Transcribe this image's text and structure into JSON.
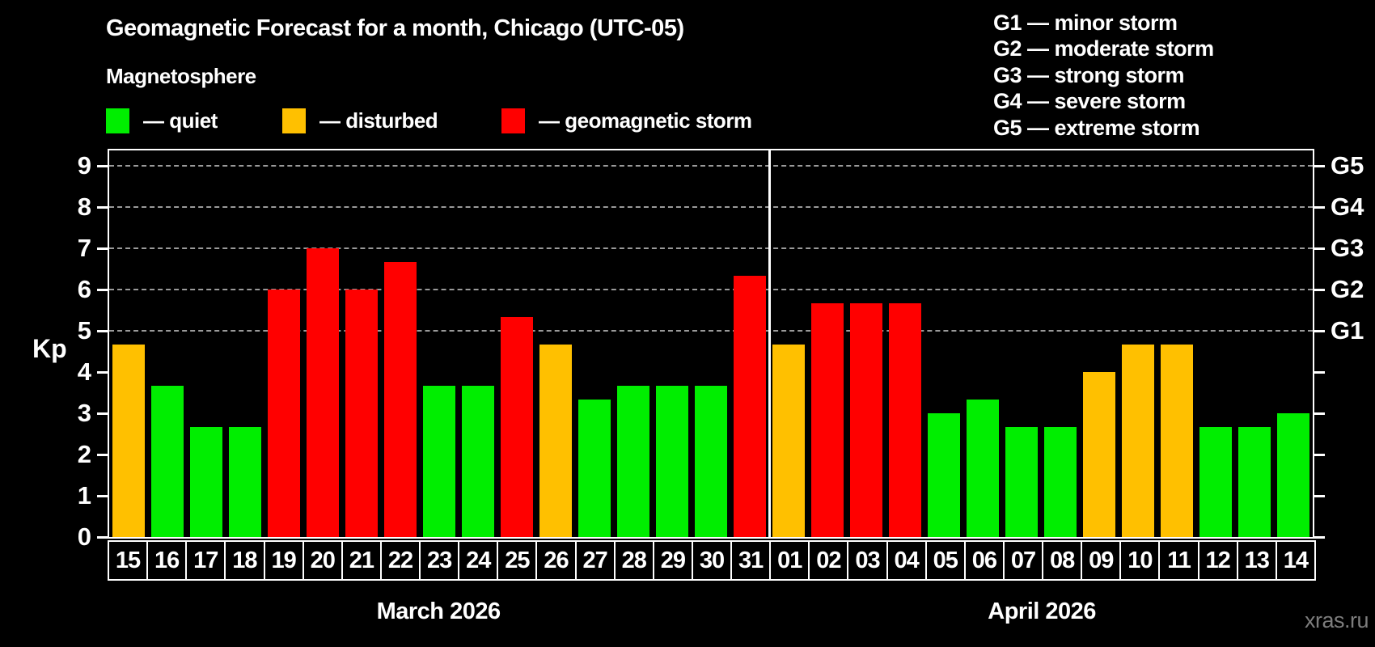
{
  "title": "Geomagnetic Forecast for a month, Chicago (UTC-05)",
  "subtitle": "Magnetosphere",
  "legend": {
    "quiet": "— quiet",
    "disturbed": "— disturbed",
    "storm": "— geomagnetic storm"
  },
  "g_scale_legend": [
    "G1 — minor storm",
    "G2 — moderate storm",
    "G3 — strong storm",
    "G4 — severe storm",
    "G5 — extreme storm"
  ],
  "watermark": "xras.ru",
  "chart_data": {
    "type": "bar",
    "title": "Geomagnetic Forecast for a month, Chicago (UTC-05)",
    "ylabel": "Kp",
    "ylim": [
      0,
      9
    ],
    "yticks": [
      0,
      1,
      2,
      3,
      4,
      5,
      6,
      7,
      8,
      9
    ],
    "gridlines_at_kp": [
      5,
      6,
      7,
      8,
      9
    ],
    "grid_on": true,
    "legend_position": "top",
    "right_axis": [
      {
        "kp": 5,
        "label": "G1"
      },
      {
        "kp": 6,
        "label": "G2"
      },
      {
        "kp": 7,
        "label": "G3"
      },
      {
        "kp": 8,
        "label": "G4"
      },
      {
        "kp": 9,
        "label": "G5"
      }
    ],
    "months": [
      {
        "label": "March 2026",
        "days": 17
      },
      {
        "label": "April 2026",
        "days": 14
      }
    ],
    "categories": [
      "15",
      "16",
      "17",
      "18",
      "19",
      "20",
      "21",
      "22",
      "23",
      "24",
      "25",
      "26",
      "27",
      "28",
      "29",
      "30",
      "31",
      "01",
      "02",
      "03",
      "04",
      "05",
      "06",
      "07",
      "08",
      "09",
      "10",
      "11",
      "12",
      "13",
      "14"
    ],
    "series": [
      {
        "name": "Kp forecast",
        "values": [
          4.67,
          3.67,
          2.67,
          2.67,
          6.0,
          7.0,
          6.0,
          6.67,
          3.67,
          3.67,
          5.33,
          4.67,
          3.33,
          3.67,
          3.67,
          3.67,
          6.33,
          4.67,
          5.67,
          5.67,
          5.67,
          3.0,
          3.33,
          2.67,
          2.67,
          4.0,
          4.67,
          4.67,
          2.67,
          2.67,
          3.0
        ]
      }
    ],
    "statuses": [
      "disturbed",
      "quiet",
      "quiet",
      "quiet",
      "storm",
      "storm",
      "storm",
      "storm",
      "quiet",
      "quiet",
      "storm",
      "disturbed",
      "quiet",
      "quiet",
      "quiet",
      "quiet",
      "storm",
      "disturbed",
      "storm",
      "storm",
      "storm",
      "quiet",
      "quiet",
      "quiet",
      "quiet",
      "disturbed",
      "disturbed",
      "disturbed",
      "quiet",
      "quiet",
      "quiet"
    ],
    "status_colors": {
      "quiet": "#00ee00",
      "disturbed": "#ffc000",
      "storm": "#ff0000"
    },
    "grid_color": "#9a9a9a"
  }
}
